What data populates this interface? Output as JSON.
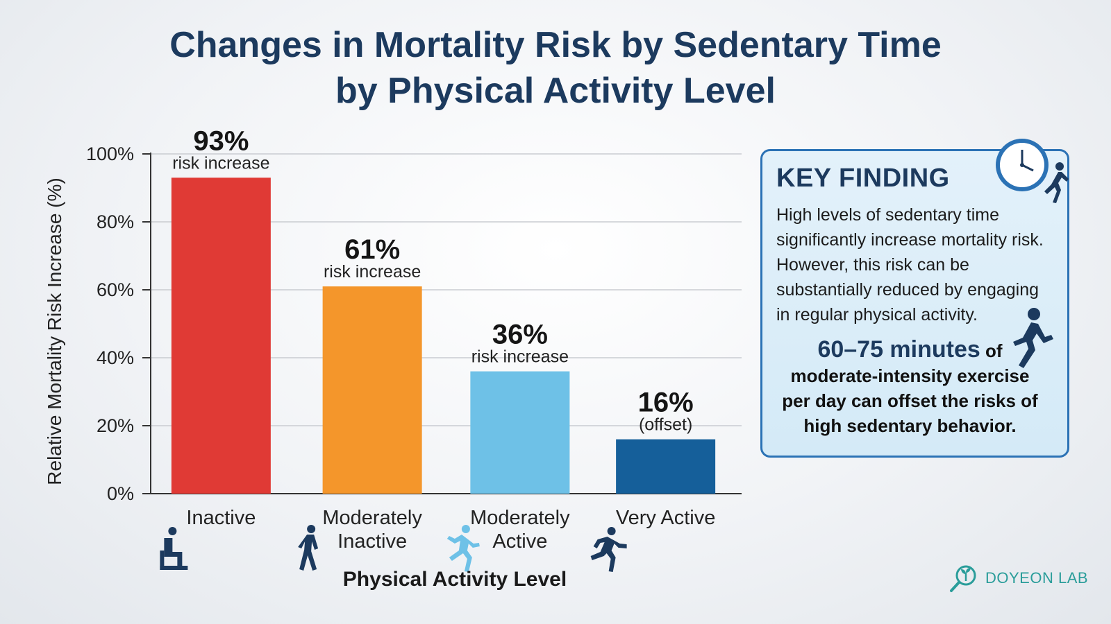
{
  "title_line1": "Changes in Mortality Risk by Sedentary Time",
  "title_line2": "by Physical Activity Level",
  "chart_data": {
    "type": "bar",
    "categories": [
      [
        "Inactive"
      ],
      [
        "Moderately",
        "Inactive"
      ],
      [
        "Moderately",
        "Active"
      ],
      [
        "Very Active"
      ]
    ],
    "values": [
      93,
      61,
      36,
      16
    ],
    "value_labels": [
      "93%",
      "61%",
      "36%",
      "16%"
    ],
    "value_sublabels": [
      "risk increase",
      "risk increase",
      "risk increase",
      "(offset)"
    ],
    "colors": [
      "#e03a35",
      "#f4962b",
      "#6ec1e7",
      "#155f9a"
    ],
    "icons": [
      "sitting-person-icon",
      "walking-person-icon",
      "jogging-person-icon",
      "running-person-icon"
    ],
    "icon_colors": [
      "#1c3a5e",
      "#1c3a5e",
      "#6ec1e7",
      "#1c3a5e"
    ],
    "ylim": [
      0,
      100
    ],
    "yticks": [
      0,
      20,
      40,
      60,
      80,
      100
    ],
    "ytick_labels": [
      "0%",
      "20%",
      "40%",
      "60%",
      "80%",
      "100%"
    ],
    "ylabel": "Relative Mortality Risk Increase (%)",
    "xlabel": "Physical Activity Level",
    "grid": true
  },
  "key_finding": {
    "title": "KEY FINDING",
    "body_lines": [
      "High levels of sedentary time",
      "significantly increase mortality risk.",
      "However, this risk can be",
      "substantially reduced by engaging",
      "in regular physical activity."
    ],
    "highlight_big": "60–75 minutes",
    "highlight_big_suffix": " of",
    "highlight_lines": [
      "moderate-intensity exercise",
      "per day can offset the risks of",
      "high sedentary behavior."
    ],
    "icons": [
      "clock-icon",
      "runner-icon"
    ],
    "border_color": "#2b72b5"
  },
  "brand": {
    "name": "DOYEON LAB",
    "icon": "magnifier-sprout-icon",
    "color": "#2a9d9a"
  }
}
